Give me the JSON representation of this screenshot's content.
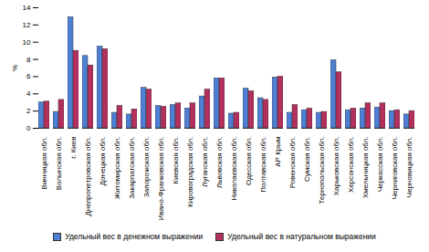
{
  "chart_data": {
    "type": "bar",
    "y_label": "%",
    "categories": [
      "Винницкая обл.",
      "Волынская обл.",
      "г. Киев",
      "Днепропетровская обл.",
      "Донецкая обл.",
      "Житомирская обл.",
      "Закарпатская обл.",
      "Запорожская обл.",
      "Ивано-Франковская обл.",
      "Киевская обл.",
      "Кировоградская обл.",
      "Луганская обл.",
      "Львовская обл.",
      "Николаевская обл.",
      "Одесская обл.",
      "Полтавская обл.",
      "АР Крым",
      "Ровенская обл.",
      "Сумская обл.",
      "Тернопольская обл.",
      "Харьковская обл.",
      "Херсонская обл.",
      "Хмельницкая обл.",
      "Черкасская обл.",
      "Черниговская обл.",
      "Черновицкая обл."
    ],
    "series": [
      {
        "name": "Удельный вес в денежном выражении",
        "color": "#4f7fd3",
        "values": [
          3.0,
          1.9,
          12.9,
          8.4,
          9.5,
          1.8,
          1.6,
          4.7,
          2.6,
          2.7,
          2.3,
          3.7,
          5.8,
          1.7,
          4.6,
          3.5,
          5.9,
          1.8,
          2.1,
          1.8,
          7.9,
          2.1,
          2.3,
          2.4,
          2.0,
          1.6
        ]
      },
      {
        "name": "Удельный вес в натуральном выражении",
        "color": "#b3305c",
        "values": [
          3.1,
          3.3,
          9.0,
          7.3,
          9.2,
          2.6,
          2.2,
          4.5,
          2.5,
          2.9,
          2.9,
          4.5,
          5.8,
          1.8,
          4.3,
          3.3,
          6.0,
          2.7,
          2.3,
          1.9,
          6.5,
          2.3,
          2.9,
          2.9,
          2.1,
          2.0
        ]
      }
    ],
    "ylim": [
      0,
      14
    ],
    "yticks": [
      0,
      2,
      4,
      6,
      8,
      10,
      12,
      14
    ],
    "grid": false,
    "legend": "bottom"
  }
}
